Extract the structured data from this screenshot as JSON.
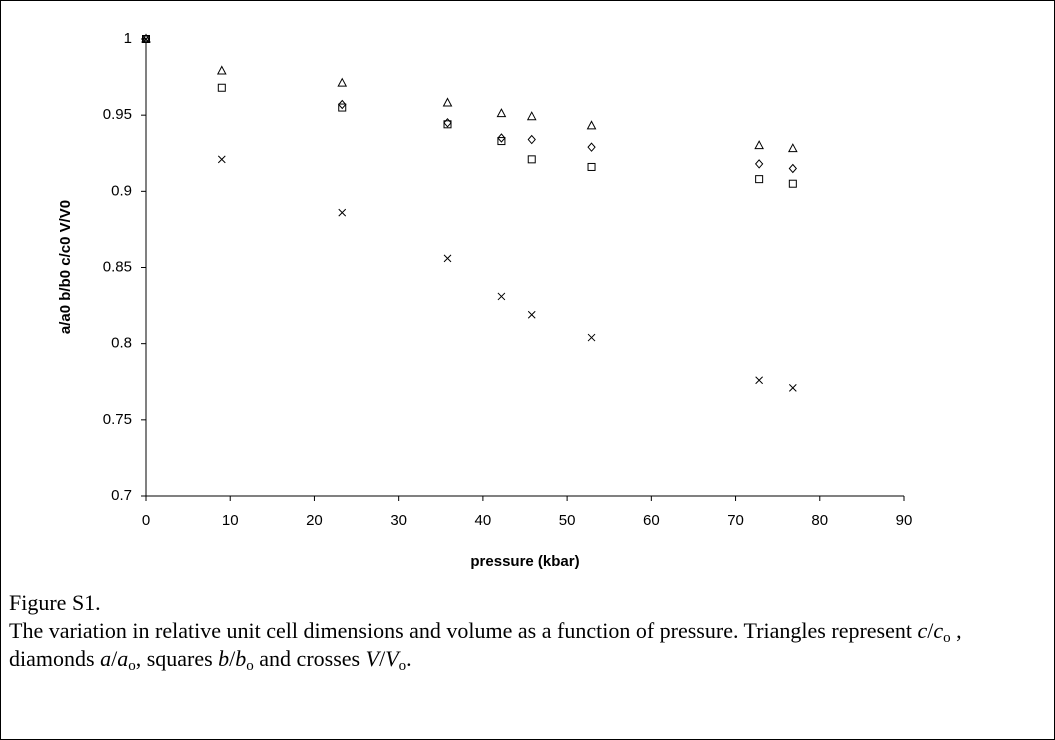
{
  "chart_data": {
    "type": "scatter",
    "xlabel": "pressure (kbar)",
    "ylabel": "a/a0 b/b0 c/c0 V/V0",
    "xlim": [
      0,
      90
    ],
    "xticks": [
      0,
      10,
      20,
      30,
      40,
      50,
      60,
      70,
      80,
      90
    ],
    "ylim": [
      0.7,
      1
    ],
    "yticks": [
      0.7,
      0.75,
      0.8,
      0.85,
      0.9,
      0.95,
      1
    ],
    "grid": false,
    "series": [
      {
        "marker": "triangle",
        "color": "#000000",
        "x": [
          0,
          9,
          23.3,
          35.8,
          42.2,
          45.8,
          52.9,
          72.8,
          76.8
        ],
        "values": [
          1,
          0.979,
          0.971,
          0.958,
          0.951,
          0.949,
          0.943,
          0.93,
          0.928
        ]
      },
      {
        "marker": "diamond",
        "color": "#000000",
        "x": [
          0,
          23.3,
          35.8,
          42.2,
          45.8,
          52.9,
          72.8,
          76.8
        ],
        "values": [
          1,
          0.957,
          0.945,
          0.935,
          0.934,
          0.929,
          0.918,
          0.915
        ]
      },
      {
        "marker": "square",
        "color": "#000000",
        "x": [
          0,
          9,
          23.3,
          35.8,
          42.2,
          45.8,
          52.9,
          72.8,
          76.8
        ],
        "values": [
          1,
          0.968,
          0.955,
          0.944,
          0.933,
          0.921,
          0.916,
          0.908,
          0.905
        ]
      },
      {
        "marker": "cross",
        "color": "#000000",
        "x": [
          0,
          9,
          23.3,
          35.8,
          42.2,
          45.8,
          52.9,
          72.8,
          76.8
        ],
        "values": [
          1,
          0.921,
          0.886,
          0.856,
          0.831,
          0.819,
          0.804,
          0.776,
          0.771
        ]
      }
    ],
    "caption": [
      {
        "text": "Figure S1.",
        "style": "break"
      },
      {
        "text": "The variation in relative unit cell dimensions and volume as a function of pressure. Triangles represent ",
        "style": "normal"
      },
      {
        "text": "c",
        "style": "italic"
      },
      {
        "text": "/",
        "style": "normal"
      },
      {
        "text": "c",
        "style": "italic"
      },
      {
        "text": "o",
        "style": "sub"
      },
      {
        "text": " , diamonds ",
        "style": "normal"
      },
      {
        "text": "a",
        "style": "italic"
      },
      {
        "text": "/",
        "style": "normal"
      },
      {
        "text": "a",
        "style": "italic"
      },
      {
        "text": "o",
        "style": "sub"
      },
      {
        "text": ", squares ",
        "style": "normal"
      },
      {
        "text": "b",
        "style": "italic"
      },
      {
        "text": "/",
        "style": "normal"
      },
      {
        "text": "b",
        "style": "italic"
      },
      {
        "text": "o",
        "style": "sub"
      },
      {
        "text": " and crosses ",
        "style": "normal"
      },
      {
        "text": "V",
        "style": "italic"
      },
      {
        "text": "/",
        "style": "normal"
      },
      {
        "text": "V",
        "style": "italic"
      },
      {
        "text": "o",
        "style": "sub"
      },
      {
        "text": ".",
        "style": "normal"
      }
    ]
  }
}
